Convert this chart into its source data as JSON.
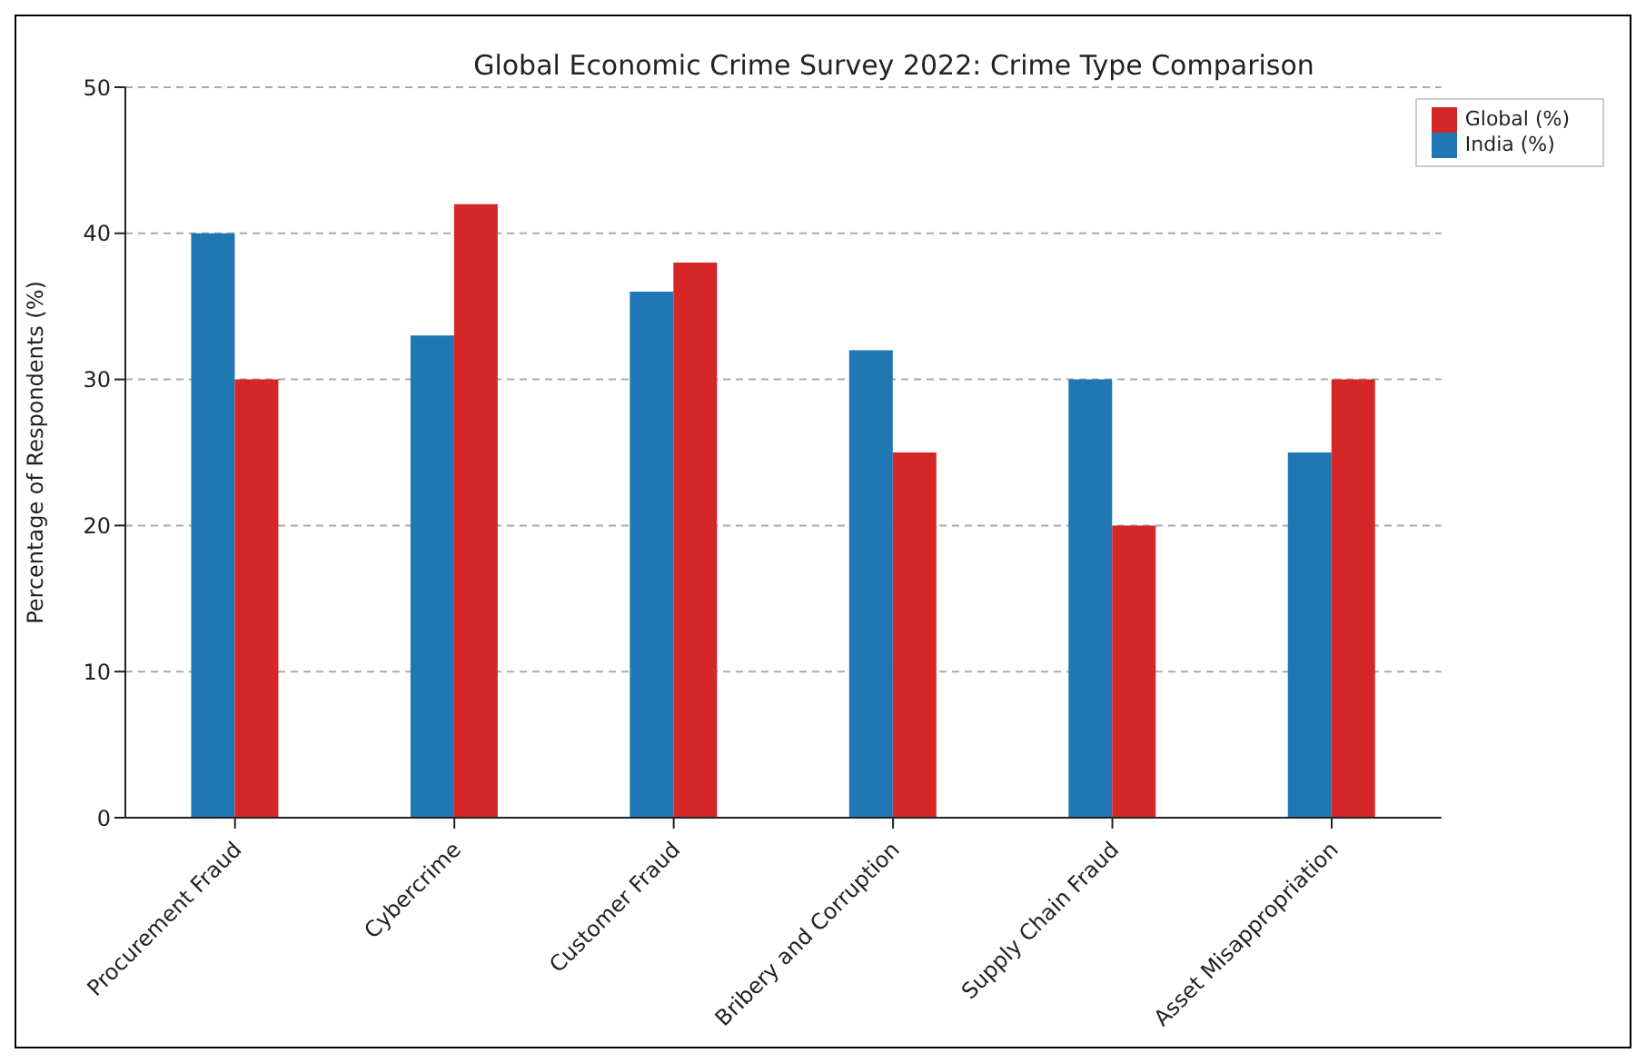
{
  "chart_data": {
    "type": "bar",
    "title": "Global Economic Crime Survey 2022: Crime Type Comparison",
    "ylabel": "Percentage of Respondents (%)",
    "categories": [
      "Procurement Fraud",
      "Cybercrime",
      "Customer Fraud",
      "Bribery and Corruption",
      "Supply Chain Fraud",
      "Asset Misappropriation"
    ],
    "series": [
      {
        "name": "India (%)",
        "color": "#1f77b4",
        "values": [
          40,
          33,
          36,
          32,
          30,
          25
        ]
      },
      {
        "name": "Global (%)",
        "color": "#d62728",
        "values": [
          30,
          42,
          38,
          25,
          20,
          30
        ]
      }
    ],
    "ylim": [
      0,
      50
    ],
    "yticks": [
      0,
      10,
      20,
      30,
      40,
      50
    ],
    "grid": "y",
    "legend": "top right"
  }
}
